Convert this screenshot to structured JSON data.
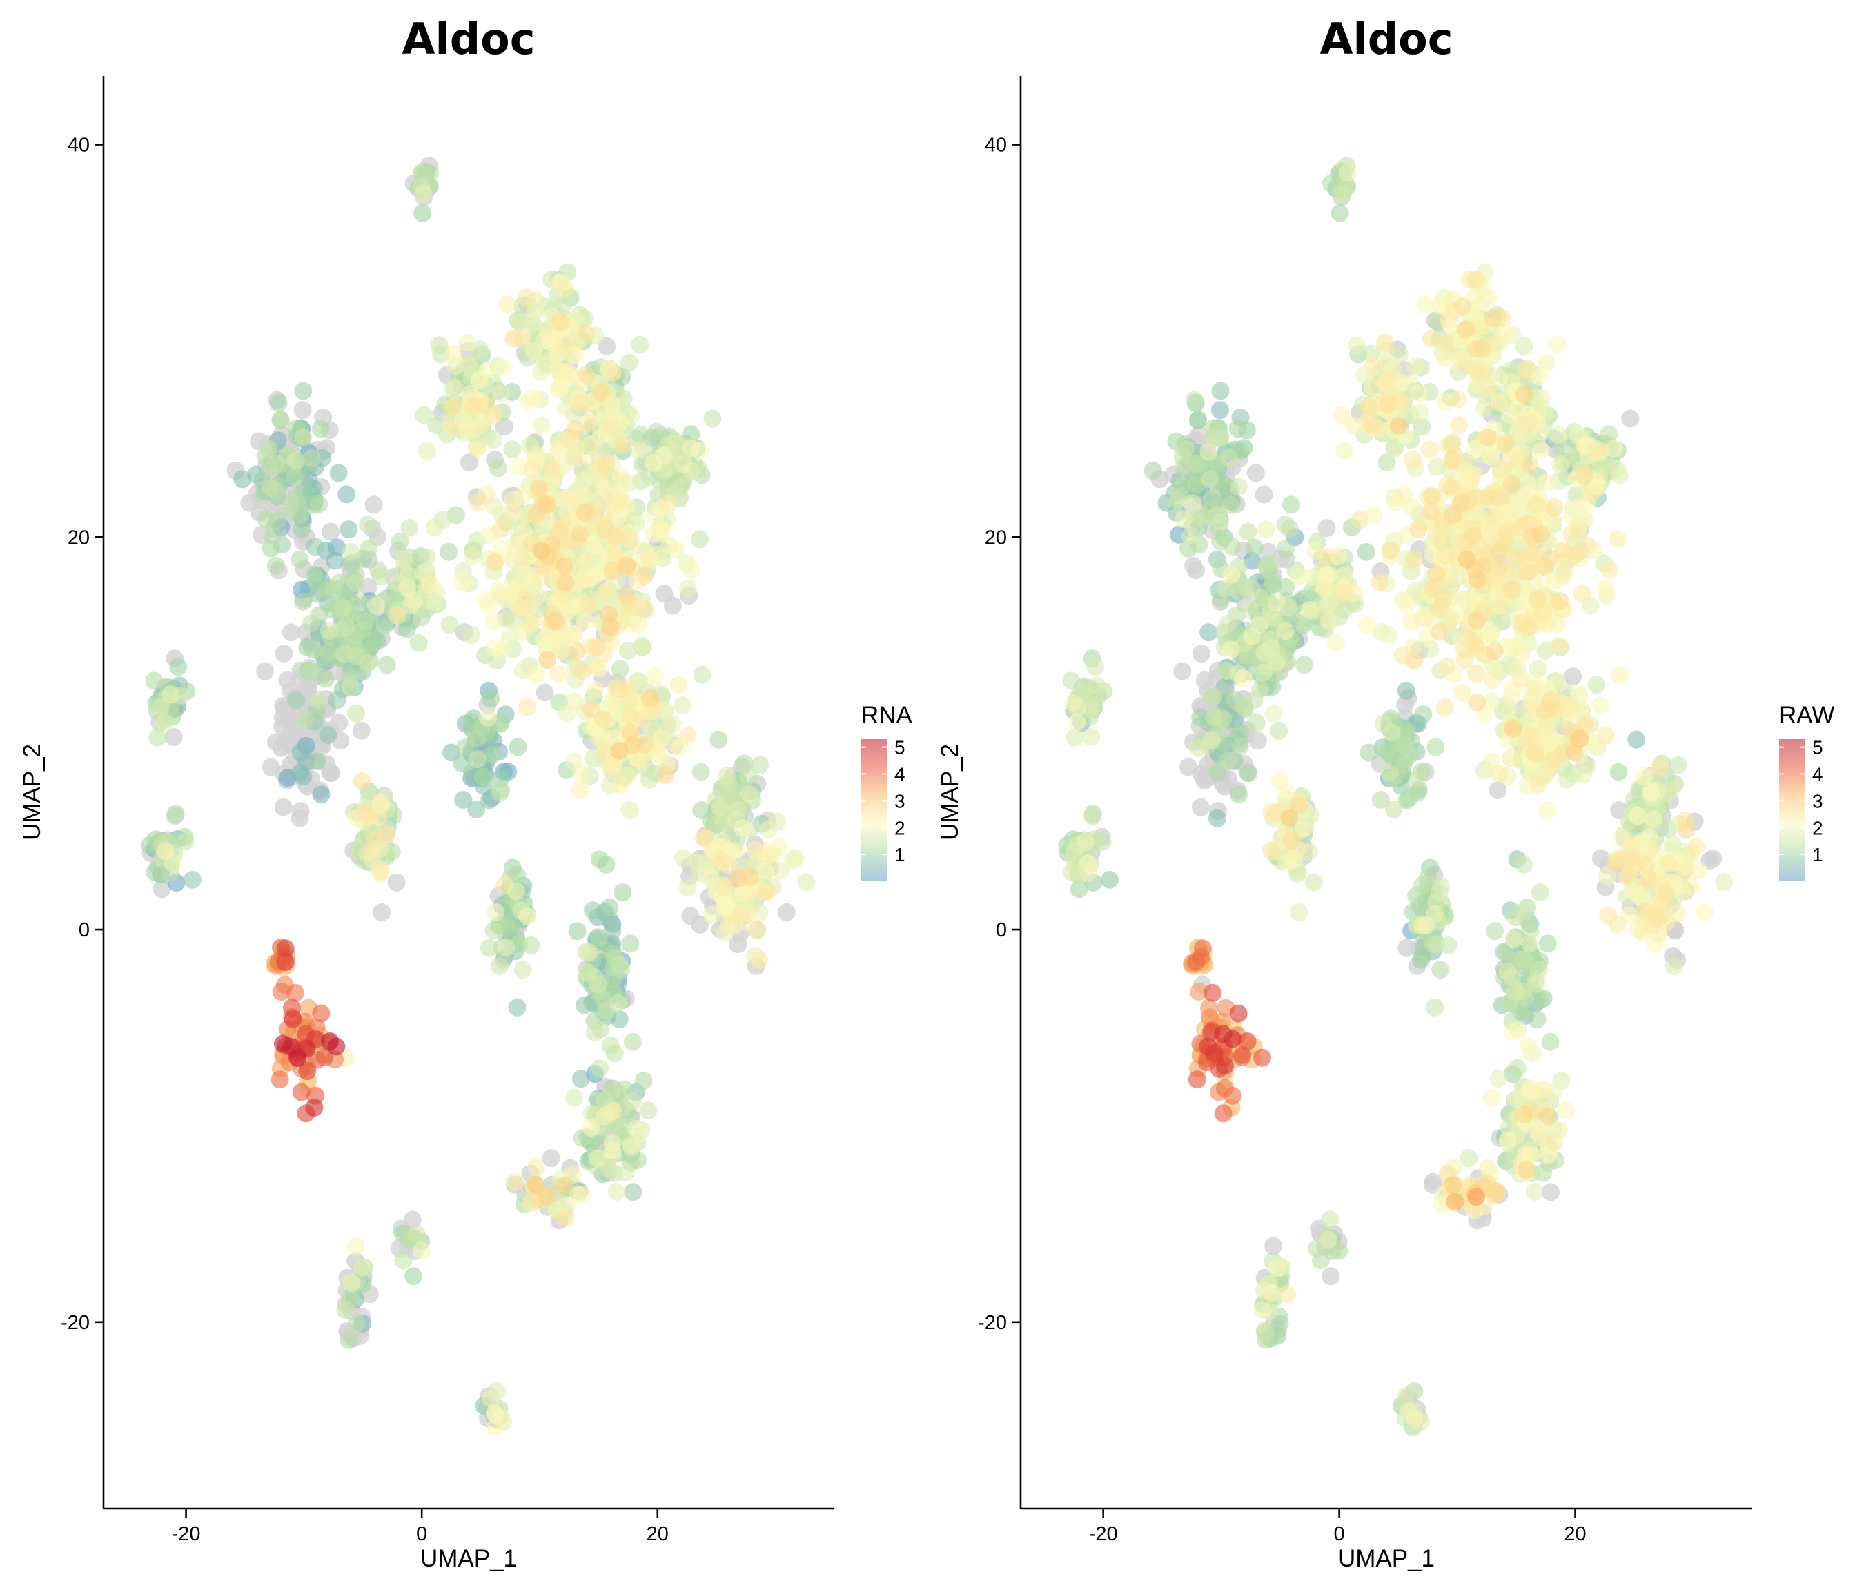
{
  "chart_data": [
    {
      "type": "scatter",
      "title": "Aldoc",
      "xlabel": "UMAP_1",
      "ylabel": "UMAP_2",
      "xlim": [
        -27,
        35
      ],
      "ylim": [
        -29.5,
        43.5
      ],
      "x_ticks": [
        -20,
        0,
        20
      ],
      "y_ticks": [
        -20,
        0,
        20,
        40
      ],
      "x_tick_labels": [
        "-20",
        "0",
        "20"
      ],
      "y_tick_labels": [
        "-20",
        "0",
        "20",
        "40"
      ],
      "grid": false,
      "legend": {
        "title": "RNA",
        "placement": "right",
        "labels": [
          "5",
          "4",
          "3",
          "2",
          "1"
        ],
        "values": [
          5,
          4,
          3,
          2,
          1
        ],
        "range": [
          0,
          5.3
        ]
      },
      "color_scale": [
        "#5e9ec9",
        "#a8d7a4",
        "#fbf9be",
        "#fcbf6e",
        "#e8593d",
        "#c2172e"
      ],
      "zero_color": "#d3d3d3",
      "clusters": [
        {
          "name": "top",
          "x": 0.1,
          "y": 37.6,
          "sx": 0.7,
          "sy": 0.9,
          "mean": 1.3,
          "sd": 0.3,
          "zero_frac": 0.35
        },
        {
          "name": "upper-big",
          "x": 12.5,
          "y": 19,
          "sx": 5.2,
          "sy": 4.2,
          "mean": 2.0,
          "sd": 0.35,
          "zero_frac": 0.1
        },
        {
          "name": "upper-top",
          "x": 11,
          "y": 30,
          "sx": 2.2,
          "sy": 1.8,
          "mean": 1.9,
          "sd": 0.4,
          "zero_frac": 0.1
        },
        {
          "name": "upper-top-left",
          "x": 4.5,
          "y": 27,
          "sx": 1.8,
          "sy": 2.0,
          "mean": 1.6,
          "sd": 0.45,
          "zero_frac": 0.1
        },
        {
          "name": "upper-top-right",
          "x": 15.5,
          "y": 26.5,
          "sx": 1.8,
          "sy": 2.2,
          "mean": 1.6,
          "sd": 0.45,
          "zero_frac": 0.1
        },
        {
          "name": "upper-right",
          "x": 21,
          "y": 24,
          "sx": 1.8,
          "sy": 1.5,
          "mean": 1.4,
          "sd": 0.4,
          "zero_frac": 0.2
        },
        {
          "name": "mid-right",
          "x": 17,
          "y": 10,
          "sx": 3.0,
          "sy": 2.0,
          "mean": 1.9,
          "sd": 0.35,
          "zero_frac": 0.1
        },
        {
          "name": "right-arm",
          "x": 26.5,
          "y": 6.5,
          "sx": 1.6,
          "sy": 1.6,
          "mean": 1.3,
          "sd": 0.35,
          "zero_frac": 0.2
        },
        {
          "name": "right-blob",
          "x": 27,
          "y": 2.5,
          "sx": 3.0,
          "sy": 1.8,
          "mean": 2.0,
          "sd": 0.3,
          "zero_frac": 0.35
        },
        {
          "name": "left-upper",
          "x": -11,
          "y": 23,
          "sx": 2.2,
          "sy": 2.4,
          "mean": 0.9,
          "sd": 0.4,
          "zero_frac": 0.55
        },
        {
          "name": "mid-left",
          "x": -6.5,
          "y": 15.5,
          "sx": 2.4,
          "sy": 2.8,
          "mean": 1.0,
          "sd": 0.4,
          "zero_frac": 0.3
        },
        {
          "name": "mid-left-2",
          "x": -1,
          "y": 17.5,
          "sx": 1.6,
          "sy": 1.6,
          "mean": 1.4,
          "sd": 0.4,
          "zero_frac": 0.2
        },
        {
          "name": "grey-left",
          "x": -10,
          "y": 10,
          "sx": 1.6,
          "sy": 2.6,
          "mean": 0.5,
          "sd": 0.3,
          "zero_frac": 0.9
        },
        {
          "name": "far-left-upper",
          "x": -21.5,
          "y": 11.5,
          "sx": 1.0,
          "sy": 1.2,
          "mean": 1.1,
          "sd": 0.4,
          "zero_frac": 0.2
        },
        {
          "name": "far-left-lower",
          "x": -21.5,
          "y": 4,
          "sx": 1.0,
          "sy": 1.3,
          "mean": 1.1,
          "sd": 0.4,
          "zero_frac": 0.2
        },
        {
          "name": "center-blob",
          "x": 5,
          "y": 9,
          "sx": 1.3,
          "sy": 1.8,
          "mean": 0.8,
          "sd": 0.35,
          "zero_frac": 0.15
        },
        {
          "name": "center-tail",
          "x": 7.5,
          "y": 0.5,
          "sx": 1.2,
          "sy": 1.8,
          "mean": 1.1,
          "sd": 0.4,
          "zero_frac": 0.2
        },
        {
          "name": "arm-up",
          "x": -4,
          "y": 5,
          "sx": 1.2,
          "sy": 1.8,
          "mean": 1.6,
          "sd": 0.5,
          "zero_frac": 0.25
        },
        {
          "name": "red-blob",
          "x": -10,
          "y": -6,
          "sx": 1.5,
          "sy": 1.5,
          "mean": 4.0,
          "sd": 0.7,
          "zero_frac": 0.02
        },
        {
          "name": "red-tip",
          "x": -12,
          "y": -1.5,
          "sx": 0.6,
          "sy": 0.8,
          "mean": 3.5,
          "sd": 0.5,
          "zero_frac": 0.05
        },
        {
          "name": "lower-right-arm",
          "x": 15.5,
          "y": -2,
          "sx": 1.2,
          "sy": 2.4,
          "mean": 0.9,
          "sd": 0.4,
          "zero_frac": 0.1
        },
        {
          "name": "lower-right-blob",
          "x": 16,
          "y": -10,
          "sx": 1.8,
          "sy": 2.0,
          "mean": 1.3,
          "sd": 0.45,
          "zero_frac": 0.2
        },
        {
          "name": "lower-right-tail",
          "x": 11,
          "y": -13.5,
          "sx": 1.8,
          "sy": 1.0,
          "mean": 1.8,
          "sd": 0.7,
          "zero_frac": 0.35
        },
        {
          "name": "bottom-left",
          "x": -5.5,
          "y": -19,
          "sx": 0.8,
          "sy": 1.5,
          "mean": 1.2,
          "sd": 0.4,
          "zero_frac": 0.4
        },
        {
          "name": "bottom-mid",
          "x": -1,
          "y": -16,
          "sx": 0.8,
          "sy": 0.8,
          "mean": 1.3,
          "sd": 0.4,
          "zero_frac": 0.5
        },
        {
          "name": "bottom",
          "x": 6,
          "y": -24.5,
          "sx": 0.6,
          "sy": 0.6,
          "mean": 1.4,
          "sd": 0.4,
          "zero_frac": 0.4
        }
      ]
    },
    {
      "type": "scatter",
      "title": "Aldoc",
      "xlabel": "UMAP_1",
      "ylabel": "UMAP_2",
      "xlim": [
        -27,
        35
      ],
      "ylim": [
        -29.5,
        43.5
      ],
      "x_ticks": [
        -20,
        0,
        20
      ],
      "y_ticks": [
        -20,
        0,
        20,
        40
      ],
      "x_tick_labels": [
        "-20",
        "0",
        "20"
      ],
      "y_tick_labels": [
        "-20",
        "0",
        "20",
        "40"
      ],
      "grid": false,
      "legend": {
        "title": "RAW",
        "placement": "right",
        "labels": [
          "5",
          "4",
          "3",
          "2",
          "1"
        ],
        "values": [
          5,
          4,
          3,
          2,
          1
        ],
        "range": [
          0,
          5.3
        ]
      },
      "color_scale": [
        "#5e9ec9",
        "#a8d7a4",
        "#fbf9be",
        "#fcbf6e",
        "#e8593d",
        "#c2172e"
      ],
      "zero_color": "#d3d3d3",
      "clusters": [
        {
          "name": "top",
          "x": 0.1,
          "y": 37.6,
          "sx": 0.7,
          "sy": 0.9,
          "mean": 1.3,
          "sd": 0.3,
          "zero_frac": 0.35
        },
        {
          "name": "upper-big",
          "x": 12.5,
          "y": 19,
          "sx": 5.2,
          "sy": 4.2,
          "mean": 2.1,
          "sd": 0.3,
          "zero_frac": 0.05
        },
        {
          "name": "upper-top",
          "x": 11,
          "y": 30,
          "sx": 2.2,
          "sy": 1.8,
          "mean": 2.0,
          "sd": 0.35,
          "zero_frac": 0.05
        },
        {
          "name": "upper-top-left",
          "x": 4.5,
          "y": 27,
          "sx": 1.8,
          "sy": 2.0,
          "mean": 1.8,
          "sd": 0.4,
          "zero_frac": 0.05
        },
        {
          "name": "upper-top-right",
          "x": 15.5,
          "y": 26.5,
          "sx": 1.8,
          "sy": 2.2,
          "mean": 1.8,
          "sd": 0.4,
          "zero_frac": 0.05
        },
        {
          "name": "upper-right",
          "x": 21,
          "y": 24,
          "sx": 1.8,
          "sy": 1.5,
          "mean": 1.6,
          "sd": 0.4,
          "zero_frac": 0.1
        },
        {
          "name": "mid-right",
          "x": 17,
          "y": 10,
          "sx": 3.0,
          "sy": 2.0,
          "mean": 2.0,
          "sd": 0.3,
          "zero_frac": 0.05
        },
        {
          "name": "right-arm",
          "x": 26.5,
          "y": 6.5,
          "sx": 1.6,
          "sy": 1.6,
          "mean": 1.5,
          "sd": 0.35,
          "zero_frac": 0.1
        },
        {
          "name": "right-blob",
          "x": 27,
          "y": 2.5,
          "sx": 3.0,
          "sy": 1.8,
          "mean": 2.1,
          "sd": 0.25,
          "zero_frac": 0.3
        },
        {
          "name": "left-upper",
          "x": -11,
          "y": 23,
          "sx": 2.2,
          "sy": 2.4,
          "mean": 1.1,
          "sd": 0.4,
          "zero_frac": 0.3
        },
        {
          "name": "mid-left",
          "x": -6.5,
          "y": 15.5,
          "sx": 2.4,
          "sy": 2.8,
          "mean": 1.2,
          "sd": 0.4,
          "zero_frac": 0.15
        },
        {
          "name": "mid-left-2",
          "x": -1,
          "y": 17.5,
          "sx": 1.6,
          "sy": 1.6,
          "mean": 1.5,
          "sd": 0.4,
          "zero_frac": 0.1
        },
        {
          "name": "grey-left",
          "x": -10,
          "y": 10,
          "sx": 1.6,
          "sy": 2.6,
          "mean": 1.1,
          "sd": 0.4,
          "zero_frac": 0.6
        },
        {
          "name": "far-left-upper",
          "x": -21.5,
          "y": 11.5,
          "sx": 1.0,
          "sy": 1.2,
          "mean": 1.4,
          "sd": 0.4,
          "zero_frac": 0.1
        },
        {
          "name": "far-left-lower",
          "x": -21.5,
          "y": 4,
          "sx": 1.0,
          "sy": 1.3,
          "mean": 1.4,
          "sd": 0.4,
          "zero_frac": 0.1
        },
        {
          "name": "center-blob",
          "x": 5,
          "y": 9,
          "sx": 1.3,
          "sy": 1.8,
          "mean": 1.0,
          "sd": 0.35,
          "zero_frac": 0.1
        },
        {
          "name": "center-tail",
          "x": 7.5,
          "y": 0.5,
          "sx": 1.2,
          "sy": 1.8,
          "mean": 1.2,
          "sd": 0.4,
          "zero_frac": 0.15
        },
        {
          "name": "arm-up",
          "x": -4,
          "y": 5,
          "sx": 1.2,
          "sy": 1.8,
          "mean": 1.9,
          "sd": 0.4,
          "zero_frac": 0.15
        },
        {
          "name": "red-blob",
          "x": -10,
          "y": -6,
          "sx": 1.5,
          "sy": 1.5,
          "mean": 3.9,
          "sd": 0.7,
          "zero_frac": 0.02
        },
        {
          "name": "red-tip",
          "x": -12,
          "y": -1.5,
          "sx": 0.6,
          "sy": 0.8,
          "mean": 3.4,
          "sd": 0.5,
          "zero_frac": 0.05
        },
        {
          "name": "lower-right-arm",
          "x": 15.5,
          "y": -2,
          "sx": 1.2,
          "sy": 2.4,
          "mean": 1.1,
          "sd": 0.4,
          "zero_frac": 0.05
        },
        {
          "name": "lower-right-blob",
          "x": 16,
          "y": -10,
          "sx": 1.8,
          "sy": 2.0,
          "mean": 1.8,
          "sd": 0.4,
          "zero_frac": 0.1
        },
        {
          "name": "lower-right-tail",
          "x": 11,
          "y": -13.5,
          "sx": 1.8,
          "sy": 1.0,
          "mean": 2.3,
          "sd": 0.5,
          "zero_frac": 0.2
        },
        {
          "name": "bottom-left",
          "x": -5.5,
          "y": -19,
          "sx": 0.8,
          "sy": 1.5,
          "mean": 1.5,
          "sd": 0.4,
          "zero_frac": 0.2
        },
        {
          "name": "bottom-mid",
          "x": -1,
          "y": -16,
          "sx": 0.8,
          "sy": 0.8,
          "mean": 1.4,
          "sd": 0.4,
          "zero_frac": 0.4
        },
        {
          "name": "bottom",
          "x": 6,
          "y": -24.5,
          "sx": 0.6,
          "sy": 0.6,
          "mean": 1.5,
          "sd": 0.4,
          "zero_frac": 0.3
        }
      ]
    }
  ]
}
